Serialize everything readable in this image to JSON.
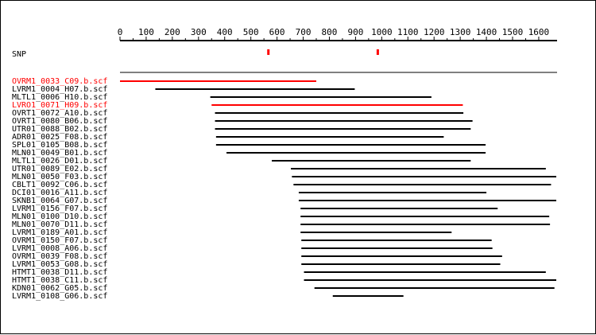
{
  "chart_data": {
    "type": "alignment",
    "axis": {
      "ticks": [
        0,
        100,
        200,
        300,
        400,
        500,
        600,
        700,
        800,
        900,
        1000,
        1100,
        1200,
        1300,
        1400,
        1500,
        1600
      ],
      "range": [
        0,
        1670
      ]
    },
    "snp": {
      "label": "SNP",
      "positions": [
        567,
        985
      ]
    },
    "reads": [
      {
        "name": "OVRM1_0033_C09.b.scf",
        "start": 0,
        "end": 750,
        "highlight": true
      },
      {
        "name": "LVRM1_0004_H07.b.scf",
        "start": 135,
        "end": 897,
        "highlight": false
      },
      {
        "name": "MLTL1_0006_H10.b.scf",
        "start": 345,
        "end": 1190,
        "highlight": false
      },
      {
        "name": "LVRO1_0071_H09.b.scf",
        "start": 350,
        "end": 1310,
        "highlight": true
      },
      {
        "name": "OVRT1_0072_A10.b.scf",
        "start": 363,
        "end": 1312,
        "highlight": false
      },
      {
        "name": "OVRT1_0080_B06.b.scf",
        "start": 363,
        "end": 1347,
        "highlight": false
      },
      {
        "name": "UTR01_0088_B02.b.scf",
        "start": 363,
        "end": 1340,
        "highlight": false
      },
      {
        "name": "ADR01_0025_F08.b.scf",
        "start": 367,
        "end": 1237,
        "highlight": false
      },
      {
        "name": "SPL01_0105_B08.b.scf",
        "start": 367,
        "end": 1397,
        "highlight": false
      },
      {
        "name": "MLN01_0049_B01.b.scf",
        "start": 407,
        "end": 1397,
        "highlight": false
      },
      {
        "name": "MLTL1_0026_D01.b.scf",
        "start": 580,
        "end": 1340,
        "highlight": false
      },
      {
        "name": "UTR01_0089_E02.b.scf",
        "start": 653,
        "end": 1627,
        "highlight": false
      },
      {
        "name": "MLN01_0050_F03.b.scf",
        "start": 657,
        "end": 1667,
        "highlight": false
      },
      {
        "name": "CBLT1_0092_C06.b.scf",
        "start": 663,
        "end": 1647,
        "highlight": false
      },
      {
        "name": "DCI01_0016_A11.b.scf",
        "start": 683,
        "end": 1400,
        "highlight": false
      },
      {
        "name": "SKNB1_0064_G07.b.scf",
        "start": 683,
        "end": 1667,
        "highlight": false
      },
      {
        "name": "LVRM1_0156_F07.b.scf",
        "start": 690,
        "end": 1443,
        "highlight": false
      },
      {
        "name": "MLN01_0100_D10.b.scf",
        "start": 690,
        "end": 1640,
        "highlight": false
      },
      {
        "name": "MLN01_0070_D11.b.scf",
        "start": 690,
        "end": 1643,
        "highlight": false
      },
      {
        "name": "LVRM1_0189_A01.b.scf",
        "start": 690,
        "end": 1267,
        "highlight": false
      },
      {
        "name": "OVRM1_0150_F07.b.scf",
        "start": 693,
        "end": 1420,
        "highlight": false
      },
      {
        "name": "LVRM1_0008_A06.b.scf",
        "start": 693,
        "end": 1423,
        "highlight": false
      },
      {
        "name": "OVRM1_0039_F08.b.scf",
        "start": 693,
        "end": 1460,
        "highlight": false
      },
      {
        "name": "LVRM1_0053_G08.b.scf",
        "start": 693,
        "end": 1453,
        "highlight": false
      },
      {
        "name": "HTMT1_0038_D11.b.scf",
        "start": 703,
        "end": 1627,
        "highlight": false
      },
      {
        "name": "HTMT1_0038_C11.b.scf",
        "start": 703,
        "end": 1667,
        "highlight": false
      },
      {
        "name": "KDN01_0062_G05.b.scf",
        "start": 743,
        "end": 1660,
        "highlight": false
      },
      {
        "name": "LVRM1_0108_G06.b.scf",
        "start": 813,
        "end": 1083,
        "highlight": false
      }
    ]
  },
  "colors": {
    "highlight": "#ff0000",
    "normal": "#000000",
    "snp": "#ff0000"
  }
}
